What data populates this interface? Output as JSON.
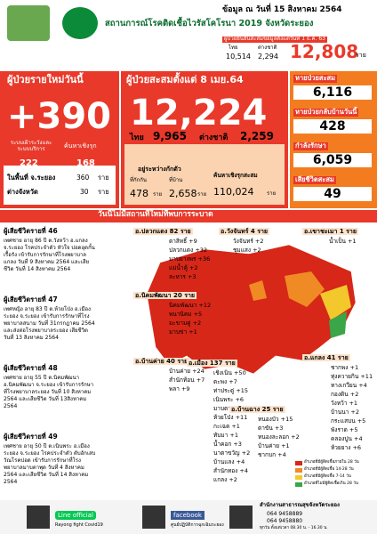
{
  "header": {
    "date": "ข้อมูล ณ วันที่ 15 สิงหาคม 2564",
    "title": "สถานการณ์โรคติดเชื้อไวรัสโคโรนา 2019 จังหวัดระยอง",
    "since_label": "ผู้ป่วยยืนยันสะสมข้อมูลตั้งแต่วันที่ 1 ธ.ค. 63",
    "thai_label": "ไทย",
    "thai": "10,514",
    "foreign_label": "ต่างชาติ",
    "foreign": "2,294",
    "total": "12,808",
    "unit": "ราย"
  },
  "new_today": {
    "title": "ผู้ป่วยรายใหม่วันนี้",
    "value": "+390",
    "surveillance_label": "ระบบเฝ้าระวังและระบบบริการ",
    "surveillance": "222",
    "active_label": "ค้นหาเชิงรุก",
    "active": "168",
    "local_label": "ในพื้นที่ จ.ระยอง",
    "local": "360",
    "outside_label": "ต่างจังหวัด",
    "outside": "30",
    "unit": "ราย"
  },
  "cumulative": {
    "title": "ผู้ป่วยสะสมตั้งแต่ 8 เมย.64",
    "value": "12,224",
    "thai_label": "ไทย",
    "thai": "9,965",
    "foreign_label": "ต่างชาติ",
    "foreign": "2,259",
    "quarantine_title": "อยู่ระหว่างกักตัว",
    "facility_label": "ที่กักกัน",
    "facility": "478",
    "home_label": "ที่บ้าน",
    "home": "2,658",
    "search_label": "ค้นหาเชิงรุกสะสม",
    "search": "110,024",
    "unit": "ราย"
  },
  "status": [
    {
      "label": "หายป่วยสะสม",
      "value": "6,116"
    },
    {
      "label": "หายป่วยกลับบ้านวันนี้",
      "value": "428"
    },
    {
      "label": "กำลังรักษา",
      "value": "6,059"
    },
    {
      "label": "เสียชีวิตสะสม",
      "value": "49"
    }
  ],
  "banner": "วันนี้ไม่มีสถานที่ใหม่ที่พบการระบาด",
  "deaths": [
    {
      "title": "ผู้เสียชีวิตรายที่ 46",
      "text": "เพศชาย อายุ 86 ปี ต.วังหว้า อ.แกลง จ.ระยอง โรคประจำตัว หัวใจ ปอดอุดกั้นเรื้อรัง เข้ารับการรักษาที่โรงพยาบาลแกลง วันที่ 9 สิงหาคม 2564 และเสียชีวิต วันที่ 14 สิงหาคม 2564"
    },
    {
      "title": "ผู้เสียชีวิตรายที่ 47",
      "text": "เพศหญิง อายุ 83 ปี ต.ห้วยโป่ง อ.เมืองระยอง จ.ระยอง เข้ารับการรักษาที่โรงพยาบาลสนาม วันที่ 31กรกฎาคม 2564 และส่งต่อโรงพยาบาลระยอง เสียชีวิต วันที่ 13 สิงหาคม 2564"
    },
    {
      "title": "ผู้เสียชีวิตรายที่ 48",
      "text": "เพศชาย อายุ 55 ปี ต.นิคมพัฒนา อ.นิคมพัฒนา จ.ระยอง เข้ารับการรักษาที่โรงพยาบาลระยอง วันที่ 10 สิงหาคม 2564 และเสียชีวิต วันที่ 13สิงหาคม 2564"
    },
    {
      "title": "ผู้เสียชีวิตรายที่ 49",
      "text": "เพศชาย อายุ 50 ปี ต.เนินพระ อ.เมืองระยอง จ.ระยอง โรคประจำตัว ตับอักเสบ วัณโรคปอด เข้ารับการรักษาที่โรงพยาบาลมาบตาพุด วันที่ 4 สิงหาคม 2564 และเสียชีวิต วันที่ 14 สิงหาคม 2564"
    }
  ],
  "districts": [
    {
      "name": "อ.ปลวกแดง 82 ราย",
      "items": [
        "ตาสิทธิ์ +9",
        "ปลวกแดง +32",
        "มาบยางพร +36",
        "แม่น้ำคู้ +2",
        "ละหาร +3"
      ]
    },
    {
      "name": "อ.วังจันทร์ 4 ราย",
      "items": [
        "วังจันทร์ +2",
        "ชุมแสง +2"
      ]
    },
    {
      "name": "อ.เขาชะเมา 1 ราย",
      "items": [
        "น้ำเป็น +1"
      ]
    },
    {
      "name": "อ.นิคมพัฒนา 20 ราย",
      "items": [
        "นิคมพัฒนา +12",
        "พนานิคม +5",
        "มะขามคู่ +2",
        "มาบข่า +1"
      ]
    },
    {
      "name": "อ.บ้านค่าย 40 ราย",
      "items": [
        "บ้านค่าย +24",
        "สำนักท้อน +7",
        "พลา +9"
      ]
    },
    {
      "name": "อ.เมือง 137 ราย",
      "items": [
        "เชิงเนิน +50",
        "ตะพง +7",
        "ท่าประดู่ +15",
        "เนินพระ +6",
        "มาบตาพุด +10",
        "ห้วยโป่ง +11",
        "กะเฉด +1",
        "ทับมา +1",
        "น้ำคอก +3",
        "นาตาขวัญ +2",
        "บ้านแลง +4",
        "สำนักทอง +4",
        "แกลง +2"
      ]
    },
    {
      "name": "อ.บ้านฉาง 25 ราย",
      "items": [
        "หนองบัว +15",
        "ตาขัน +3",
        "หนองละลอก +2",
        "บ้านค่าย +1",
        "ชากบก +4"
      ]
    },
    {
      "name": "อ.แกลง 41 ราย",
      "items": [
        "ชากพง +1",
        "ทุ่งควายกิน +11",
        "ทางเกวียน +4",
        "กองดิน +2",
        "วังหว้า +1",
        "บ้านนา +2",
        "กระแสบน +5",
        "พังราด +5",
        "คลองปูน +4",
        "ห้วยยาง +6"
      ]
    }
  ],
  "legend": [
    "อำเภอที่มีผู้ติดเชื้อภายใน 28 วัน",
    "อำเภอที่มีผู้ติดเชื้อ 14-28 วัน",
    "อำเภอที่มีผู้ติดเชื้อ 7-14 วัน",
    "อำเภอที่ไม่มีผู้ติดเชื้อเกิน 28 วัน"
  ],
  "footer": {
    "line": "Line official",
    "slogan": "Rayong fight Covid19",
    "page": "facebook",
    "org": "สำนักงานสาธารณสุขจังหวัดระยอง",
    "phone1": "064 9458889",
    "phone2": "064 9458880",
    "hours": "ทุกวัน ตั้งแต่เวลา 08.30 น. - 16.30 น.",
    "center": "ศูนย์ปฏิบัติการฉุกเฉินระยอง"
  }
}
